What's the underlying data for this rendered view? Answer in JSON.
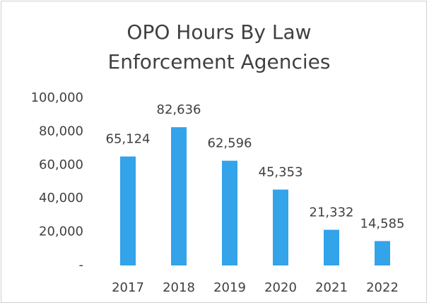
{
  "chart_data": {
    "type": "bar",
    "title": "OPO Hours By Law Enforcement Agencies",
    "categories": [
      "2017",
      "2018",
      "2019",
      "2020",
      "2021",
      "2022"
    ],
    "values": [
      65124,
      82636,
      62596,
      45353,
      21332,
      14585
    ],
    "value_labels": [
      "65,124",
      "82,636",
      "62,596",
      "45,353",
      "21,332",
      "14,585"
    ],
    "color": "#33a3ea",
    "ylim": [
      0,
      100000
    ],
    "yticks": [
      {
        "value": 0,
        "label": "-"
      },
      {
        "value": 20000,
        "label": "20,000"
      },
      {
        "value": 40000,
        "label": "40,000"
      },
      {
        "value": 60000,
        "label": "60,000"
      },
      {
        "value": 80000,
        "label": "80,000"
      },
      {
        "value": 100000,
        "label": "100,000"
      }
    ],
    "grid": false
  }
}
